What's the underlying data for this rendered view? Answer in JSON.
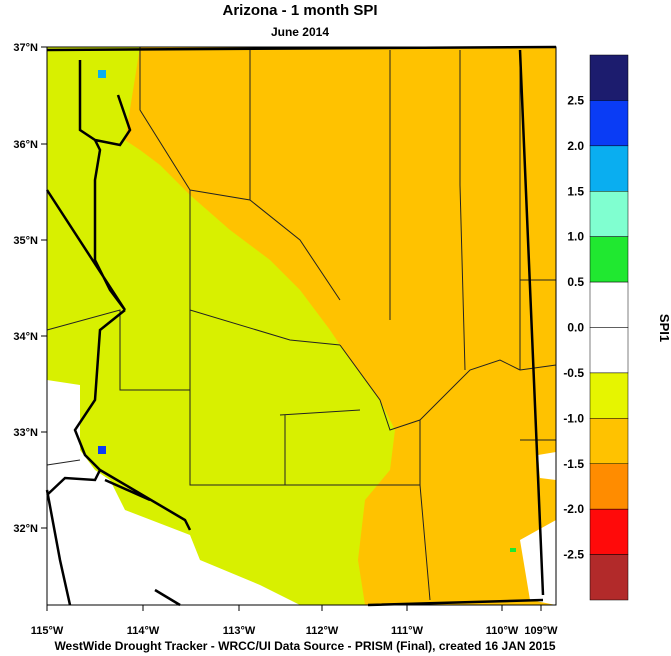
{
  "title": "Arizona - 1 month SPI",
  "subtitle": "June 2014",
  "lat_ticks": [
    "37°N",
    "36°N",
    "35°N",
    "34°N",
    "33°N",
    "32°N"
  ],
  "lon_ticks": [
    "115°W",
    "114°W",
    "113°W",
    "112°W",
    "111°W",
    "110°W",
    "109°W"
  ],
  "colorbar": {
    "label": "SPI1",
    "colors": [
      "#1c1c6e",
      "#0a3cf5",
      "#0aaef0",
      "#80ffd0",
      "#20e830",
      "#ffffff",
      "#ffffff",
      "#e6f500",
      "#ffc200",
      "#ff8c00",
      "#ff0a0a",
      "#b22a2a"
    ],
    "ticks": [
      {
        "value": 2.5,
        "label": "2.5"
      },
      {
        "value": 2,
        "label": "2.0"
      },
      {
        "value": 1.5,
        "label": "1.5"
      },
      {
        "value": 1,
        "label": "1.0"
      },
      {
        "value": 0.5,
        "label": "0.5"
      },
      {
        "value": 0,
        "label": "0.0"
      },
      {
        "value": -0.5,
        "label": "-0.5"
      },
      {
        "value": -1,
        "label": "-1.0"
      },
      {
        "value": -1.5,
        "label": "-1.5"
      },
      {
        "value": -2,
        "label": "-2.0"
      },
      {
        "value": -2.5,
        "label": "-2.5"
      }
    ]
  },
  "footer": "WestWide Drought Tracker - WRCC/UI  Data Source - PRISM (Final), created 16 JAN 2015"
}
